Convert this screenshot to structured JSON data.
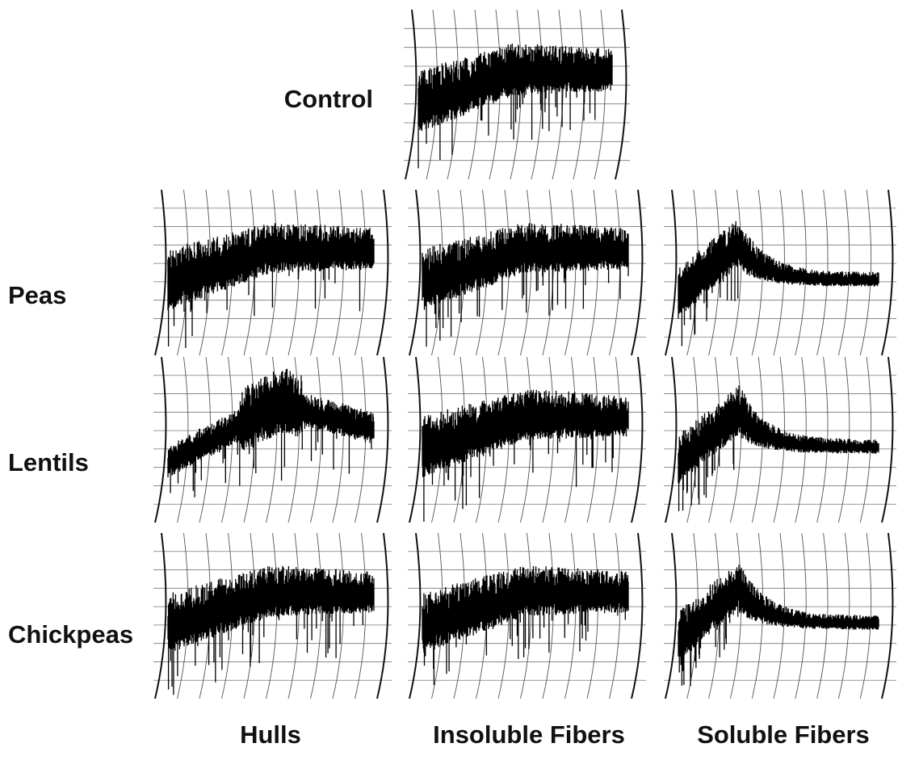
{
  "control_label": "Control",
  "rows": [
    {
      "label": "Peas"
    },
    {
      "label": "Lentils"
    },
    {
      "label": "Chickpeas"
    }
  ],
  "columns": [
    "Hulls",
    "Insoluble Fibers",
    "Soluble Fibers"
  ]
}
